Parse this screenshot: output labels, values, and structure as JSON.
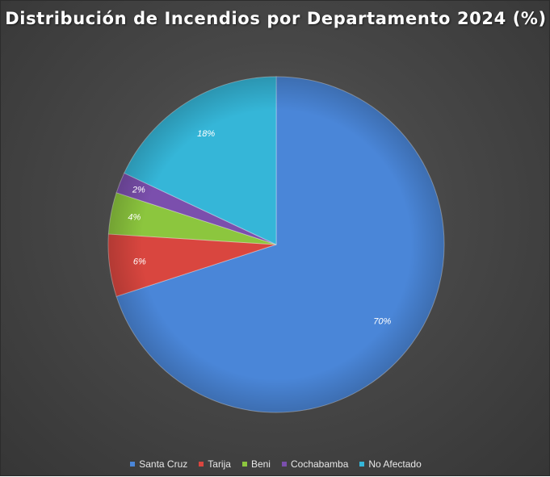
{
  "chart_data": {
    "type": "pie",
    "title": "Distribución de Incendios por Departamento 2024 (%)",
    "categories": [
      "Santa Cruz",
      "Tarija",
      "Beni",
      "Cochabamba",
      "No Afectado"
    ],
    "values": [
      70,
      6,
      4,
      2,
      18
    ],
    "data_labels": [
      "70%",
      "6%",
      "4%",
      "2%",
      "18%"
    ],
    "colors": [
      "#4a86d8",
      "#d9463f",
      "#8cc63e",
      "#7b4fad",
      "#35b6d8"
    ],
    "legend_position": "bottom"
  }
}
